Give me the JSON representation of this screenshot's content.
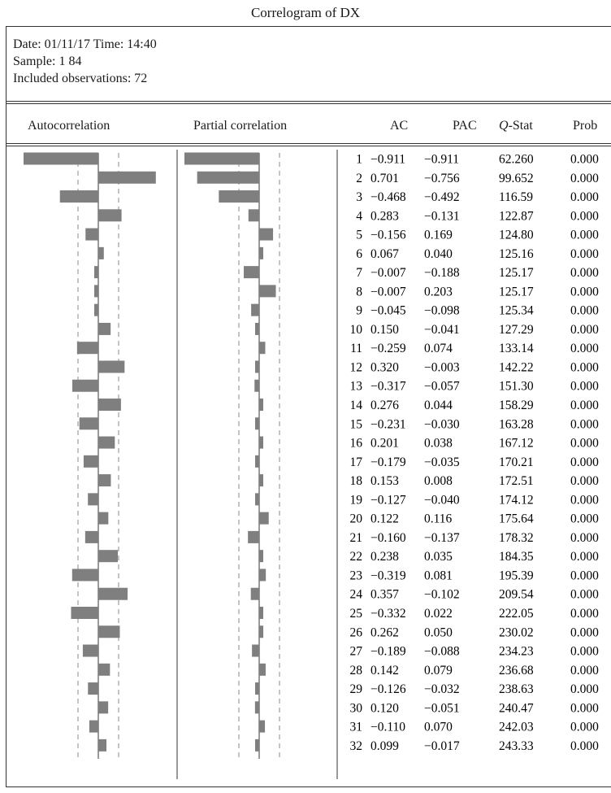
{
  "title": "Correlogram of DX",
  "meta": {
    "date_line": "Date: 01/11/17 Time: 14:40",
    "sample_line": "Sample: 1 84",
    "obs_line": "Included observations: 72"
  },
  "columns": {
    "autocorrelation": "Autocorrelation",
    "partial": "Partial correlation",
    "ac": "AC",
    "pac": "PAC",
    "qstat_italic": "Q",
    "qstat_rest": "-Stat",
    "prob": "Prob"
  },
  "chart_data": {
    "type": "table",
    "bar_color": "#7f7f7f",
    "lags": [
      1,
      2,
      3,
      4,
      5,
      6,
      7,
      8,
      9,
      10,
      11,
      12,
      13,
      14,
      15,
      16,
      17,
      18,
      19,
      20,
      21,
      22,
      23,
      24,
      25,
      26,
      27,
      28,
      29,
      30,
      31,
      32
    ],
    "ac": [
      -0.911,
      0.701,
      -0.468,
      0.283,
      -0.156,
      0.067,
      -0.007,
      -0.007,
      -0.045,
      0.15,
      -0.259,
      0.32,
      -0.317,
      0.276,
      -0.231,
      0.201,
      -0.179,
      0.153,
      -0.127,
      0.122,
      -0.16,
      0.238,
      -0.319,
      0.357,
      -0.332,
      0.262,
      -0.189,
      0.142,
      -0.126,
      0.12,
      -0.11,
      0.099
    ],
    "pac": [
      -0.911,
      -0.756,
      -0.492,
      -0.131,
      0.169,
      0.04,
      -0.188,
      0.203,
      -0.098,
      -0.041,
      0.074,
      -0.003,
      -0.057,
      0.044,
      -0.03,
      0.038,
      -0.035,
      0.008,
      -0.04,
      0.116,
      -0.137,
      0.035,
      0.081,
      -0.102,
      0.022,
      0.05,
      -0.088,
      0.079,
      -0.032,
      -0.051,
      0.07,
      -0.017
    ],
    "ac_text": [
      "−0.911",
      "0.701",
      "−0.468",
      "0.283",
      "−0.156",
      "0.067",
      "−0.007",
      "−0.007",
      "−0.045",
      "0.150",
      "−0.259",
      "0.320",
      "−0.317",
      "0.276",
      "−0.231",
      "0.201",
      "−0.179",
      "0.153",
      "−0.127",
      "0.122",
      "−0.160",
      "0.238",
      "−0.319",
      "0.357",
      "−0.332",
      "0.262",
      "−0.189",
      "0.142",
      "−0.126",
      "0.120",
      "−0.110",
      "0.099"
    ],
    "pac_text": [
      "−0.911",
      "−0.756",
      "−0.492",
      "−0.131",
      "0.169",
      "0.040",
      "−0.188",
      "0.203",
      "−0.098",
      "−0.041",
      "0.074",
      "−0.003",
      "−0.057",
      "0.044",
      "−0.030",
      "0.038",
      "−0.035",
      "0.008",
      "−0.040",
      "0.116",
      "−0.137",
      "0.035",
      "0.081",
      "−0.102",
      "0.022",
      "0.050",
      "−0.088",
      "0.079",
      "−0.032",
      "−0.051",
      "0.070",
      "−0.017"
    ],
    "qstat": [
      "62.260",
      "99.652",
      "116.59",
      "122.87",
      "124.80",
      "125.16",
      "125.17",
      "125.17",
      "125.34",
      "127.29",
      "133.14",
      "142.22",
      "151.30",
      "158.29",
      "163.28",
      "167.12",
      "170.21",
      "172.51",
      "174.12",
      "175.64",
      "178.32",
      "184.35",
      "195.39",
      "209.54",
      "222.05",
      "230.02",
      "234.23",
      "236.68",
      "238.63",
      "240.47",
      "242.03",
      "243.33"
    ],
    "prob": [
      "0.000",
      "0.000",
      "0.000",
      "0.000",
      "0.000",
      "0.000",
      "0.000",
      "0.000",
      "0.000",
      "0.000",
      "0.000",
      "0.000",
      "0.000",
      "0.000",
      "0.000",
      "0.000",
      "0.000",
      "0.000",
      "0.000",
      "0.000",
      "0.000",
      "0.000",
      "0.000",
      "0.000",
      "0.000",
      "0.000",
      "0.000",
      "0.000",
      "0.000",
      "0.000",
      "0.000",
      "0.000"
    ]
  }
}
